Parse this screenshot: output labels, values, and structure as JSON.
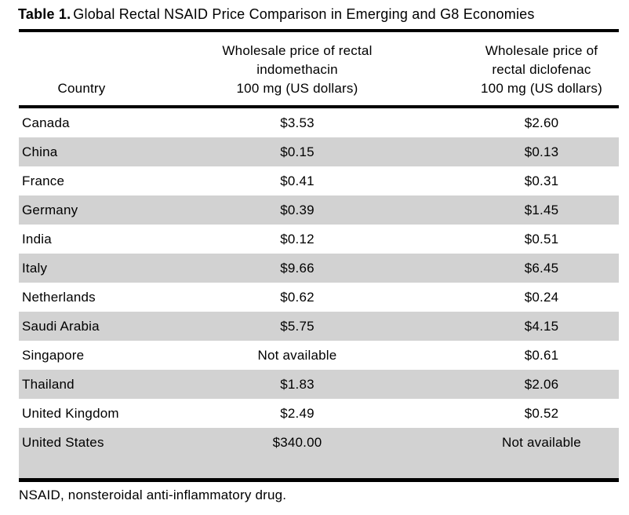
{
  "caption": {
    "label": "Table 1.",
    "title": "Global Rectal NSAID Price Comparison in Emerging and G8 Economies"
  },
  "table": {
    "headers": [
      {
        "lines": [
          "Country"
        ]
      },
      {
        "lines": [
          "Wholesale price of rectal",
          "indomethacin",
          "100 mg (US dollars)"
        ]
      },
      {
        "lines": [
          "Wholesale price of",
          "rectal diclofenac",
          "100 mg (US dollars)"
        ]
      }
    ],
    "rows": [
      [
        "Canada",
        "$3.53",
        "$2.60"
      ],
      [
        "China",
        "$0.15",
        "$0.13"
      ],
      [
        "France",
        "$0.41",
        "$0.31"
      ],
      [
        "Germany",
        "$0.39",
        "$1.45"
      ],
      [
        "India",
        "$0.12",
        "$0.51"
      ],
      [
        "Italy",
        "$9.66",
        "$6.45"
      ],
      [
        "Netherlands",
        "$0.62",
        "$0.24"
      ],
      [
        "Saudi Arabia",
        "$5.75",
        "$4.15"
      ],
      [
        "Singapore",
        "Not available",
        "$0.61"
      ],
      [
        "Thailand",
        "$1.83",
        "$2.06"
      ],
      [
        "United Kingdom",
        "$2.49",
        "$0.52"
      ],
      [
        "United States",
        "$340.00",
        "Not available"
      ]
    ]
  },
  "footnote": "NSAID, nonsteroidal anti-inflammatory drug.",
  "colors": {
    "row_shading": "#d2d2d2",
    "rule": "#000000",
    "text": "#000000",
    "background": "#ffffff"
  }
}
